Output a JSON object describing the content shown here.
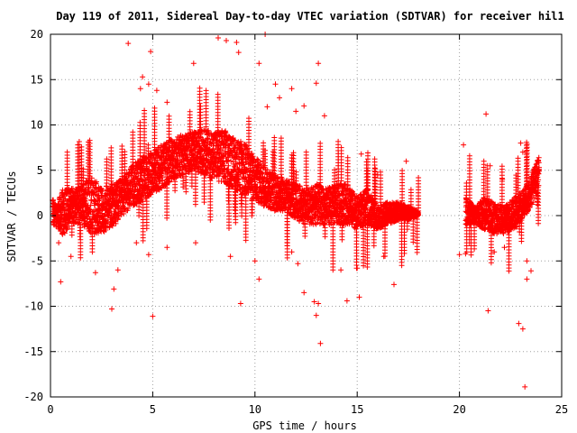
{
  "chart_data": {
    "type": "scatter",
    "title": "Day 119 of 2011, Sidereal Day-to-day VTEC variation (SDTVAR) for receiver hil1",
    "xlabel": "GPS time / hours",
    "ylabel": "SDTVAR / TECUs",
    "xlim": [
      0,
      25
    ],
    "ylim": [
      -20,
      20
    ],
    "xticks": [
      "0",
      "5",
      "10",
      "15",
      "20",
      "25"
    ],
    "yticks": [
      "-20",
      "-15",
      "-10",
      "-5",
      "0",
      "5",
      "10",
      "15",
      "20"
    ],
    "grid": true,
    "marker": "+",
    "color": "#ff0000",
    "envelope": [
      [
        0.1,
        -1.0,
        2.0
      ],
      [
        0.3,
        -1.2,
        1.0
      ],
      [
        0.6,
        -2.5,
        3.0
      ],
      [
        1.0,
        -0.8,
        3.0
      ],
      [
        1.5,
        -1.0,
        3.2
      ],
      [
        2.0,
        -2.0,
        4.5
      ],
      [
        2.5,
        -2.0,
        3.0
      ],
      [
        3.0,
        -1.5,
        3.5
      ],
      [
        3.5,
        0.0,
        4.0
      ],
      [
        4.0,
        1.0,
        5.5
      ],
      [
        4.5,
        1.5,
        6.5
      ],
      [
        5.0,
        2.5,
        7.0
      ],
      [
        5.5,
        3.0,
        8.0
      ],
      [
        6.0,
        4.0,
        8.5
      ],
      [
        6.5,
        4.5,
        9.0
      ],
      [
        7.0,
        5.0,
        9.2
      ],
      [
        7.5,
        4.5,
        9.5
      ],
      [
        8.0,
        4.0,
        9.3
      ],
      [
        8.5,
        3.5,
        9.5
      ],
      [
        9.0,
        3.0,
        8.5
      ],
      [
        9.5,
        2.0,
        8.0
      ],
      [
        10.0,
        1.5,
        6.5
      ],
      [
        10.5,
        1.0,
        5.5
      ],
      [
        11.0,
        0.5,
        4.5
      ],
      [
        11.5,
        0.5,
        4.0
      ],
      [
        12.0,
        -0.5,
        3.5
      ],
      [
        12.5,
        -1.0,
        3.0
      ],
      [
        13.0,
        -1.0,
        3.5
      ],
      [
        13.5,
        -1.0,
        3.0
      ],
      [
        14.0,
        -1.0,
        3.5
      ],
      [
        14.5,
        -1.0,
        3.5
      ],
      [
        15.0,
        -1.5,
        2.0
      ],
      [
        15.5,
        -1.0,
        3.0
      ],
      [
        16.0,
        -1.5,
        1.0
      ],
      [
        16.5,
        -1.0,
        1.5
      ],
      [
        17.0,
        -0.5,
        1.5
      ],
      [
        17.5,
        -0.5,
        1.0
      ],
      [
        18.0,
        0.0,
        0.5
      ],
      [
        20.3,
        -1.0,
        2.0
      ],
      [
        20.8,
        -1.0,
        1.0
      ],
      [
        21.2,
        -1.5,
        2.0
      ],
      [
        21.7,
        -2.0,
        1.5
      ],
      [
        22.2,
        -2.0,
        1.0
      ],
      [
        22.7,
        -1.5,
        2.0
      ],
      [
        23.2,
        0.0,
        3.0
      ],
      [
        23.5,
        1.0,
        4.5
      ],
      [
        23.9,
        3.0,
        6.5
      ]
    ],
    "outliers": [
      [
        3.8,
        19.0
      ],
      [
        4.5,
        15.3
      ],
      [
        4.4,
        14.0
      ],
      [
        4.8,
        14.5
      ],
      [
        4.9,
        18.1
      ],
      [
        5.2,
        13.8
      ],
      [
        5.7,
        12.5
      ],
      [
        7.0,
        16.8
      ],
      [
        8.2,
        19.6
      ],
      [
        8.6,
        19.3
      ],
      [
        9.1,
        19.1
      ],
      [
        9.2,
        18.0
      ],
      [
        10.2,
        16.8
      ],
      [
        10.5,
        20.0
      ],
      [
        10.6,
        12.0
      ],
      [
        11.0,
        14.5
      ],
      [
        11.2,
        13.0
      ],
      [
        11.8,
        14.0
      ],
      [
        12.0,
        11.5
      ],
      [
        12.4,
        12.1
      ],
      [
        13.1,
        16.8
      ],
      [
        13.0,
        14.6
      ],
      [
        13.4,
        11.0
      ],
      [
        15.2,
        6.8
      ],
      [
        16.0,
        4.5
      ],
      [
        17.4,
        6.0
      ],
      [
        20.2,
        7.8
      ],
      [
        21.3,
        11.2
      ],
      [
        21.5,
        5.5
      ],
      [
        22.1,
        4.0
      ],
      [
        23.0,
        8.0
      ],
      [
        23.1,
        7.0
      ],
      [
        0.4,
        -3.0
      ],
      [
        0.5,
        -7.3
      ],
      [
        1.0,
        -4.5
      ],
      [
        2.2,
        -6.3
      ],
      [
        3.0,
        -10.3
      ],
      [
        3.1,
        -8.1
      ],
      [
        3.3,
        -6.0
      ],
      [
        4.2,
        -3.0
      ],
      [
        4.8,
        -4.3
      ],
      [
        5.0,
        -11.1
      ],
      [
        5.7,
        -3.5
      ],
      [
        7.1,
        -3.0
      ],
      [
        8.8,
        -4.5
      ],
      [
        9.3,
        -9.7
      ],
      [
        10.0,
        -5.0
      ],
      [
        10.2,
        -7.0
      ],
      [
        11.8,
        -4.0
      ],
      [
        12.1,
        -5.3
      ],
      [
        12.4,
        -8.5
      ],
      [
        12.9,
        -9.5
      ],
      [
        13.0,
        -11.0
      ],
      [
        13.1,
        -9.7
      ],
      [
        13.2,
        -14.1
      ],
      [
        14.2,
        -6.0
      ],
      [
        14.5,
        -9.4
      ],
      [
        15.1,
        -9.0
      ],
      [
        15.0,
        -5.8
      ],
      [
        16.3,
        -4.5
      ],
      [
        16.8,
        -7.6
      ],
      [
        20.0,
        -4.3
      ],
      [
        20.3,
        -4.2
      ],
      [
        21.4,
        -10.5
      ],
      [
        21.7,
        -4.0
      ],
      [
        22.2,
        -3.5
      ],
      [
        22.9,
        -11.9
      ],
      [
        23.1,
        -12.5
      ],
      [
        23.2,
        -18.9
      ],
      [
        23.3,
        -7.0
      ],
      [
        23.5,
        -6.1
      ],
      [
        23.3,
        -5.0
      ]
    ]
  }
}
